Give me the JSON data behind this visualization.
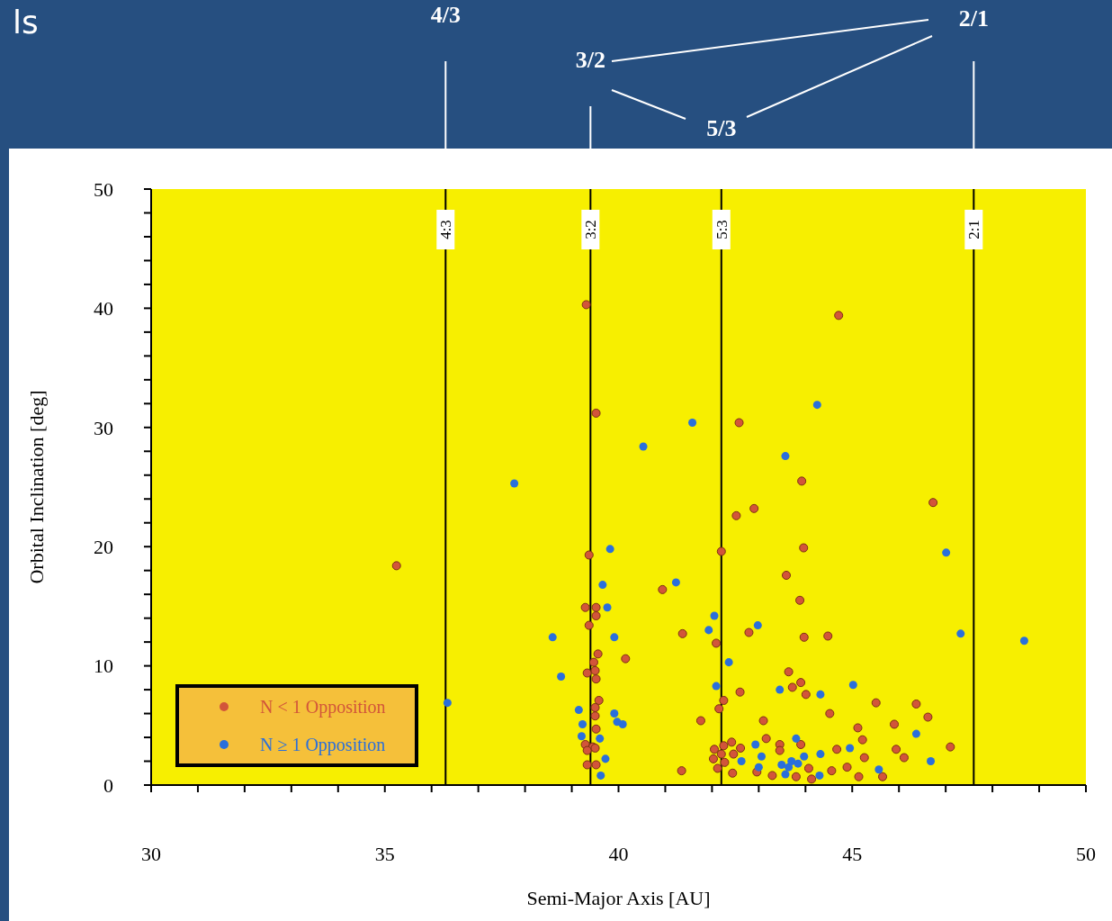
{
  "chart_data": {
    "type": "scatter",
    "xlabel": "Semi-Major Axis [AU]",
    "ylabel": "Orbital Inclination [deg]",
    "xlim": [
      30,
      50
    ],
    "ylim": [
      0,
      50
    ],
    "xticks": [
      30,
      {
        "value": 31,
        "label": null
      },
      {
        "value": 32,
        "label": null
      },
      {
        "value": 33,
        "label": null
      },
      {
        "value": 34,
        "label": null
      },
      35,
      {
        "value": 36,
        "label": null
      },
      {
        "value": 37,
        "label": null
      },
      {
        "value": 38,
        "label": null
      },
      {
        "value": 39,
        "label": null
      },
      40,
      {
        "value": 41,
        "label": null
      },
      {
        "value": 42,
        "label": null
      },
      {
        "value": 43,
        "label": null
      },
      {
        "value": 44,
        "label": null
      },
      45,
      {
        "value": 46,
        "label": null
      },
      {
        "value": 47,
        "label": null
      },
      {
        "value": 48,
        "label": null
      },
      {
        "value": 49,
        "label": null
      },
      50
    ],
    "yticks": [
      0,
      {
        "value": 2,
        "label": null
      },
      {
        "value": 4,
        "label": null
      },
      {
        "value": 6,
        "label": null
      },
      {
        "value": 8,
        "label": null
      },
      10,
      {
        "value": 12,
        "label": null
      },
      {
        "value": 14,
        "label": null
      },
      {
        "value": 16,
        "label": null
      },
      {
        "value": 18,
        "label": null
      },
      20,
      {
        "value": 22,
        "label": null
      },
      {
        "value": 24,
        "label": null
      },
      {
        "value": 26,
        "label": null
      },
      {
        "value": 28,
        "label": null
      },
      30,
      {
        "value": 32,
        "label": null
      },
      {
        "value": 34,
        "label": null
      },
      {
        "value": 36,
        "label": null
      },
      {
        "value": 38,
        "label": null
      },
      40,
      {
        "value": 42,
        "label": null
      },
      {
        "value": 44,
        "label": null
      },
      {
        "value": 46,
        "label": null
      },
      {
        "value": 48,
        "label": null
      },
      50
    ],
    "grid": false,
    "legend": "bottom left",
    "marker": "circle",
    "ref_lines": [
      {
        "axis": "x",
        "value": 36.3,
        "color": "#000000"
      },
      {
        "axis": "x",
        "value": 39.4,
        "color": "#000000"
      },
      {
        "axis": "x",
        "value": 42.2,
        "color": "#000000"
      },
      {
        "axis": "x",
        "value": 47.6,
        "color": "#000000"
      }
    ],
    "annotations": [
      "ls",
      "4/3",
      "3/2",
      "5/3",
      "2/1",
      "4:3",
      "3:2",
      "5:3",
      "2:1"
    ],
    "series": [
      {
        "name": "N < 1 Opposition",
        "color": "#d2553a",
        "x": [
          35.25,
          39.31,
          39.52,
          39.37,
          40.94,
          39.29,
          39.52,
          39.52,
          39.37,
          41.37,
          39.56,
          39.47,
          39.33,
          39.5,
          39.52,
          40.15,
          39.58,
          39.5,
          39.5,
          39.52,
          41.76,
          39.29,
          39.45,
          39.33,
          39.5,
          39.33,
          39.52,
          41.35,
          42.58,
          44.71,
          43.92,
          46.73,
          42.9,
          42.52,
          42.2,
          43.96,
          43.59,
          43.88,
          42.79,
          42.09,
          43.97,
          44.48,
          43.64,
          43.72,
          43.9,
          44.01,
          42.6,
          42.25,
          42.15,
          43.1,
          44.52,
          45.51,
          46.37,
          46.62,
          45.9,
          45.12,
          45.22,
          47.1,
          45.94,
          46.11,
          45.26,
          44.67,
          44.56,
          44.89,
          45.14,
          45.65,
          43.16,
          43.45,
          43.45,
          43.9,
          43.8,
          44.07,
          44.13,
          42.96,
          43.29,
          42.44,
          42.61,
          42.42,
          42.25,
          42.05,
          42.03,
          42.12,
          42.27,
          42.46,
          42.2
        ],
        "values": [
          18.4,
          40.3,
          31.2,
          19.3,
          16.4,
          14.9,
          14.9,
          14.2,
          13.4,
          12.7,
          11.0,
          10.3,
          9.4,
          9.6,
          8.9,
          10.6,
          7.1,
          6.5,
          5.8,
          4.7,
          5.4,
          3.4,
          3.2,
          2.9,
          3.1,
          1.7,
          1.7,
          1.2,
          30.4,
          39.4,
          25.5,
          23.7,
          23.2,
          22.6,
          19.6,
          19.9,
          17.6,
          15.5,
          12.8,
          11.9,
          12.4,
          12.5,
          9.5,
          8.2,
          8.6,
          7.6,
          7.8,
          7.1,
          6.4,
          5.4,
          6.0,
          6.9,
          6.8,
          5.7,
          5.1,
          4.8,
          3.8,
          3.2,
          3.0,
          2.3,
          2.3,
          3.0,
          1.2,
          1.5,
          0.7,
          0.7,
          3.9,
          3.4,
          2.9,
          3.4,
          0.7,
          1.4,
          0.5,
          1.1,
          0.8,
          1.0,
          3.1,
          3.6,
          3.3,
          3.0,
          2.2,
          1.4,
          1.9,
          2.6,
          2.6
        ]
      },
      {
        "name": "N ≥ 1 Opposition",
        "color": "#2a6fdb",
        "x": [
          36.34,
          37.77,
          40.53,
          41.58,
          44.25,
          43.57,
          39.82,
          39.66,
          41.23,
          39.76,
          38.59,
          39.91,
          42.05,
          41.93,
          42.98,
          47.01,
          47.32,
          48.68,
          38.77,
          42.36,
          42.09,
          39.15,
          39.23,
          39.21,
          39.6,
          39.91,
          39.97,
          40.09,
          39.72,
          39.62,
          43.45,
          44.32,
          45.02,
          46.37,
          46.68,
          44.95,
          44.32,
          43.8,
          42.93,
          42.63,
          43.0,
          43.06,
          43.49,
          43.64,
          43.7,
          43.57,
          43.84,
          43.97,
          44.3,
          45.57
        ],
        "values": [
          6.9,
          25.3,
          28.4,
          30.4,
          31.9,
          27.6,
          19.8,
          16.8,
          17.0,
          14.9,
          12.4,
          12.4,
          14.2,
          13.0,
          13.4,
          19.5,
          12.7,
          12.1,
          9.1,
          10.3,
          8.3,
          6.3,
          5.1,
          4.1,
          3.9,
          6.0,
          5.3,
          5.1,
          2.2,
          0.8,
          8.0,
          7.6,
          8.4,
          4.3,
          2.0,
          3.1,
          2.6,
          3.9,
          3.4,
          2.0,
          1.5,
          2.4,
          1.7,
          1.5,
          2.0,
          0.9,
          1.8,
          2.4,
          0.8,
          1.3
        ]
      }
    ]
  }
}
